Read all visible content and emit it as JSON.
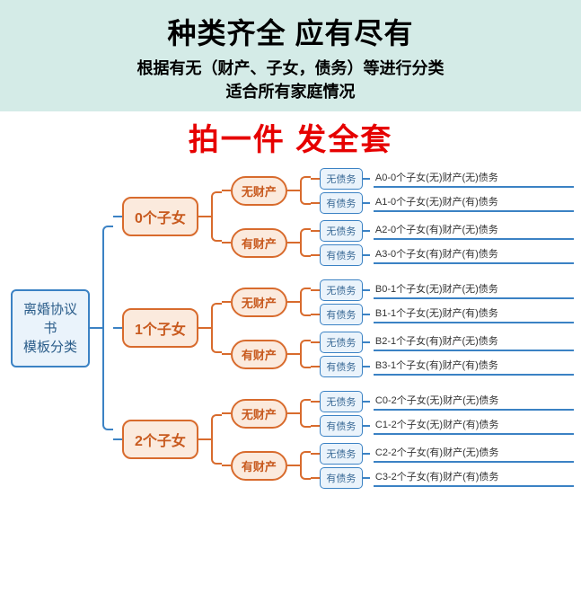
{
  "header": {
    "title": "种类齐全  应有尽有",
    "sub1": "根据有无（财产、子女，债务）等进行分类",
    "sub2": "适合所有家庭情况"
  },
  "banner": "拍一件  发全套",
  "colors": {
    "root_border": "#3b82c4",
    "root_bg": "#eaf3fb",
    "orange_border": "#d86b2d",
    "orange_bg": "#fbeadd",
    "blue_border": "#3b82c4",
    "blue_bg": "#eaf3fb",
    "header_bg": "#d4ebe7",
    "banner_color": "#e60000"
  },
  "root": "离婚协议书\n模板分类",
  "root_line1": "离婚协议书",
  "root_line2": "模板分类",
  "level1": [
    {
      "label": "0个子女",
      "children": [
        {
          "label": "无财产",
          "children": [
            {
              "label": "无债务",
              "desc": "A0-0个子女(无)财产(无)债务"
            },
            {
              "label": "有债务",
              "desc": "A1-0个子女(无)财产(有)债务"
            }
          ]
        },
        {
          "label": "有财产",
          "children": [
            {
              "label": "无债务",
              "desc": "A2-0个子女(有)财产(无)债务"
            },
            {
              "label": "有债务",
              "desc": "A3-0个子女(有)财产(有)债务"
            }
          ]
        }
      ]
    },
    {
      "label": "1个子女",
      "children": [
        {
          "label": "无财产",
          "children": [
            {
              "label": "无债务",
              "desc": "B0-1个子女(无)财产(无)债务"
            },
            {
              "label": "有债务",
              "desc": "B1-1个子女(无)财产(有)债务"
            }
          ]
        },
        {
          "label": "有财产",
          "children": [
            {
              "label": "无债务",
              "desc": "B2-1个子女(有)财产(无)债务"
            },
            {
              "label": "有债务",
              "desc": "B3-1个子女(有)财产(有)债务"
            }
          ]
        }
      ]
    },
    {
      "label": "2个子女",
      "children": [
        {
          "label": "无财产",
          "children": [
            {
              "label": "无债务",
              "desc": "C0-2个子女(无)财产(无)债务"
            },
            {
              "label": "有债务",
              "desc": "C1-2个子女(无)财产(有)债务"
            }
          ]
        },
        {
          "label": "有财产",
          "children": [
            {
              "label": "无债务",
              "desc": "C2-2个子女(有)财产(无)债务"
            },
            {
              "label": "有债务",
              "desc": "C3-2个子女(有)财产(有)债务"
            }
          ]
        }
      ]
    }
  ]
}
